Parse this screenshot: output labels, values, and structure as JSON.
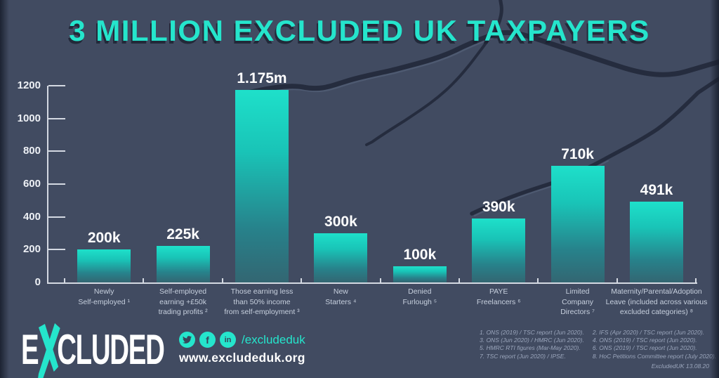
{
  "title": "3 MILLION EXCLUDED UK TAXPAYERS",
  "colors": {
    "bg": "#414B61",
    "teal": "#25E5CC",
    "bar-top": "#1EE0CA",
    "bar-bottom": "#336672",
    "axis": "#D4D9E2",
    "crack": "#252C3E"
  },
  "chart_data": {
    "type": "bar",
    "title": "3 MILLION EXCLUDED UK TAXPAYERS",
    "unit": "thousands of taxpayers",
    "categories": [
      "Newly\nSelf-employed ¹",
      "Self-employed\nearning +£50k\ntrading profits ²",
      "Those earning less\nthan 50% income\nfrom self-employment ³",
      "New\nStarters ⁴",
      "Denied\nFurlough ⁵",
      "PAYE\nFreelancers ⁶",
      "Limited\nCompany\nDirectors ⁷",
      "Maternity/Parental/Adoption\nLeave (included across various\nexcluded categories) ⁸"
    ],
    "values": [
      200,
      225,
      1175,
      300,
      100,
      390,
      710,
      491
    ],
    "value_labels": [
      "200k",
      "225k",
      "1.175m",
      "300k",
      "100k",
      "390k",
      "710k",
      "491k"
    ],
    "xlabel": "",
    "ylabel": "",
    "ylim": [
      0,
      1200
    ],
    "yticks": [
      0,
      200,
      400,
      600,
      800,
      1000,
      1200
    ],
    "grid": false,
    "legend": false
  },
  "footer": {
    "logo": {
      "e": "E",
      "x": "X",
      "rest": "CLUDED"
    },
    "social": {
      "icons": [
        "twitter",
        "facebook",
        "linkedin"
      ],
      "facebook_glyph": "f",
      "linkedin_glyph": "in",
      "handle": "/excludeduk",
      "website": "www.excludeduk.org"
    },
    "footnotes_col1": [
      "1. ONS (2019) / TSC report (Jun 2020).",
      "3. ONS (Jun 2020) / HMRC (Jun 2020).",
      "5. HMRC RTI figures (Mar-May 2020).",
      "7. TSC report (Jun 2020) / IPSE."
    ],
    "footnotes_col2": [
      "2. IFS (Apr 2020) / TSC report (Jun 2020).",
      "4. ONS (2019) / TSC report (Jun 2020).",
      "6. ONS (2019) / TSC report (Jun 2020).",
      "8. HoC Petitions Committee report (July 2020)."
    ],
    "credit": "ExcludedUK 13.08.20"
  }
}
